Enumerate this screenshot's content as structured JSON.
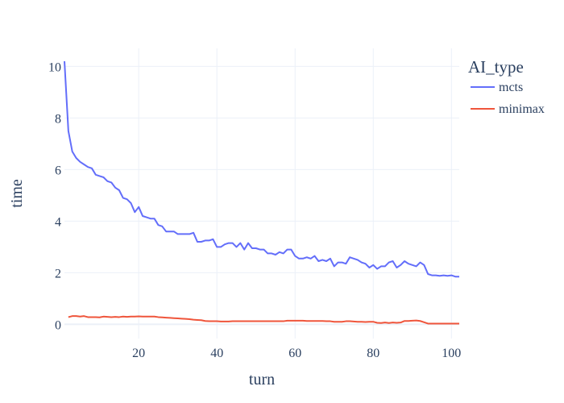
{
  "chart_data": {
    "type": "line",
    "xlabel": "turn",
    "ylabel": "time",
    "xlim": [
      1,
      102
    ],
    "ylim": [
      -0.55,
      10.7
    ],
    "x_ticks": [
      20,
      40,
      60,
      80,
      100
    ],
    "y_ticks": [
      0,
      2,
      4,
      6,
      8,
      10
    ],
    "grid": true,
    "legend": {
      "title": "AI_type",
      "position": "top-right"
    },
    "series": [
      {
        "name": "mcts",
        "color": "#636efa",
        "points": [
          [
            1,
            10.2
          ],
          [
            2,
            7.5
          ],
          [
            3,
            6.7
          ],
          [
            4,
            6.45
          ],
          [
            5,
            6.3
          ],
          [
            6,
            6.2
          ],
          [
            7,
            6.1
          ],
          [
            8,
            6.05
          ],
          [
            9,
            5.8
          ],
          [
            10,
            5.75
          ],
          [
            11,
            5.7
          ],
          [
            12,
            5.55
          ],
          [
            13,
            5.5
          ],
          [
            14,
            5.3
          ],
          [
            15,
            5.2
          ],
          [
            16,
            4.9
          ],
          [
            17,
            4.85
          ],
          [
            18,
            4.7
          ],
          [
            19,
            4.35
          ],
          [
            20,
            4.55
          ],
          [
            21,
            4.2
          ],
          [
            22,
            4.15
          ],
          [
            23,
            4.1
          ],
          [
            24,
            4.1
          ],
          [
            25,
            3.85
          ],
          [
            26,
            3.8
          ],
          [
            27,
            3.6
          ],
          [
            28,
            3.6
          ],
          [
            29,
            3.6
          ],
          [
            30,
            3.5
          ],
          [
            31,
            3.5
          ],
          [
            32,
            3.5
          ],
          [
            33,
            3.5
          ],
          [
            34,
            3.55
          ],
          [
            35,
            3.2
          ],
          [
            36,
            3.2
          ],
          [
            37,
            3.25
          ],
          [
            38,
            3.25
          ],
          [
            39,
            3.3
          ],
          [
            40,
            3.0
          ],
          [
            41,
            3.0
          ],
          [
            42,
            3.1
          ],
          [
            43,
            3.15
          ],
          [
            44,
            3.15
          ],
          [
            45,
            3.0
          ],
          [
            46,
            3.15
          ],
          [
            47,
            2.9
          ],
          [
            48,
            3.15
          ],
          [
            49,
            2.95
          ],
          [
            50,
            2.95
          ],
          [
            51,
            2.9
          ],
          [
            52,
            2.9
          ],
          [
            53,
            2.75
          ],
          [
            54,
            2.75
          ],
          [
            55,
            2.7
          ],
          [
            56,
            2.8
          ],
          [
            57,
            2.75
          ],
          [
            58,
            2.9
          ],
          [
            59,
            2.9
          ],
          [
            60,
            2.65
          ],
          [
            61,
            2.55
          ],
          [
            62,
            2.55
          ],
          [
            63,
            2.6
          ],
          [
            64,
            2.55
          ],
          [
            65,
            2.65
          ],
          [
            66,
            2.45
          ],
          [
            67,
            2.5
          ],
          [
            68,
            2.45
          ],
          [
            69,
            2.55
          ],
          [
            70,
            2.25
          ],
          [
            71,
            2.4
          ],
          [
            72,
            2.4
          ],
          [
            73,
            2.35
          ],
          [
            74,
            2.6
          ],
          [
            75,
            2.55
          ],
          [
            76,
            2.5
          ],
          [
            77,
            2.4
          ],
          [
            78,
            2.35
          ],
          [
            79,
            2.2
          ],
          [
            80,
            2.3
          ],
          [
            81,
            2.15
          ],
          [
            82,
            2.25
          ],
          [
            83,
            2.25
          ],
          [
            84,
            2.4
          ],
          [
            85,
            2.45
          ],
          [
            86,
            2.2
          ],
          [
            87,
            2.3
          ],
          [
            88,
            2.45
          ],
          [
            89,
            2.35
          ],
          [
            90,
            2.3
          ],
          [
            91,
            2.25
          ],
          [
            92,
            2.4
          ],
          [
            93,
            2.3
          ],
          [
            94,
            1.95
          ],
          [
            95,
            1.9
          ],
          [
            96,
            1.9
          ],
          [
            97,
            1.88
          ],
          [
            98,
            1.9
          ],
          [
            99,
            1.88
          ],
          [
            100,
            1.9
          ],
          [
            101,
            1.85
          ],
          [
            102,
            1.85
          ]
        ]
      },
      {
        "name": "minimax",
        "color": "#ef553b",
        "points": [
          [
            2,
            0.28
          ],
          [
            3,
            0.32
          ],
          [
            4,
            0.32
          ],
          [
            5,
            0.3
          ],
          [
            6,
            0.32
          ],
          [
            7,
            0.28
          ],
          [
            8,
            0.28
          ],
          [
            9,
            0.28
          ],
          [
            10,
            0.27
          ],
          [
            11,
            0.3
          ],
          [
            12,
            0.29
          ],
          [
            13,
            0.28
          ],
          [
            14,
            0.29
          ],
          [
            15,
            0.28
          ],
          [
            16,
            0.3
          ],
          [
            17,
            0.29
          ],
          [
            18,
            0.3
          ],
          [
            19,
            0.3
          ],
          [
            20,
            0.31
          ],
          [
            21,
            0.3
          ],
          [
            22,
            0.3
          ],
          [
            23,
            0.3
          ],
          [
            24,
            0.3
          ],
          [
            25,
            0.28
          ],
          [
            26,
            0.27
          ],
          [
            27,
            0.26
          ],
          [
            28,
            0.25
          ],
          [
            29,
            0.24
          ],
          [
            30,
            0.23
          ],
          [
            31,
            0.22
          ],
          [
            32,
            0.21
          ],
          [
            33,
            0.2
          ],
          [
            34,
            0.18
          ],
          [
            35,
            0.17
          ],
          [
            36,
            0.16
          ],
          [
            37,
            0.13
          ],
          [
            38,
            0.12
          ],
          [
            39,
            0.12
          ],
          [
            40,
            0.12
          ],
          [
            41,
            0.11
          ],
          [
            42,
            0.11
          ],
          [
            43,
            0.11
          ],
          [
            44,
            0.12
          ],
          [
            45,
            0.12
          ],
          [
            46,
            0.12
          ],
          [
            47,
            0.12
          ],
          [
            48,
            0.12
          ],
          [
            49,
            0.12
          ],
          [
            50,
            0.12
          ],
          [
            51,
            0.12
          ],
          [
            52,
            0.12
          ],
          [
            53,
            0.12
          ],
          [
            54,
            0.12
          ],
          [
            55,
            0.12
          ],
          [
            56,
            0.12
          ],
          [
            57,
            0.12
          ],
          [
            58,
            0.14
          ],
          [
            59,
            0.14
          ],
          [
            60,
            0.14
          ],
          [
            61,
            0.14
          ],
          [
            62,
            0.14
          ],
          [
            63,
            0.13
          ],
          [
            64,
            0.13
          ],
          [
            65,
            0.13
          ],
          [
            66,
            0.13
          ],
          [
            67,
            0.13
          ],
          [
            68,
            0.12
          ],
          [
            69,
            0.12
          ],
          [
            70,
            0.1
          ],
          [
            71,
            0.1
          ],
          [
            72,
            0.1
          ],
          [
            73,
            0.12
          ],
          [
            74,
            0.12
          ],
          [
            75,
            0.11
          ],
          [
            76,
            0.1
          ],
          [
            77,
            0.1
          ],
          [
            78,
            0.09
          ],
          [
            79,
            0.1
          ],
          [
            80,
            0.1
          ],
          [
            81,
            0.06
          ],
          [
            82,
            0.05
          ],
          [
            83,
            0.07
          ],
          [
            84,
            0.05
          ],
          [
            85,
            0.07
          ],
          [
            86,
            0.06
          ],
          [
            87,
            0.07
          ],
          [
            88,
            0.13
          ],
          [
            89,
            0.13
          ],
          [
            90,
            0.14
          ],
          [
            91,
            0.15
          ],
          [
            92,
            0.13
          ],
          [
            93,
            0.08
          ],
          [
            94,
            0.03
          ],
          [
            95,
            0.03
          ],
          [
            96,
            0.03
          ],
          [
            97,
            0.03
          ],
          [
            98,
            0.03
          ],
          [
            99,
            0.03
          ],
          [
            100,
            0.03
          ],
          [
            101,
            0.03
          ],
          [
            102,
            0.03
          ]
        ]
      }
    ]
  }
}
